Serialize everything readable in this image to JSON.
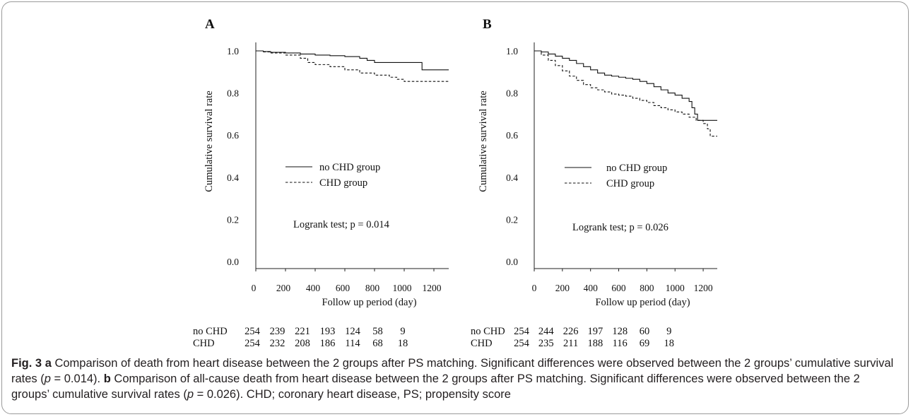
{
  "chart_data": [
    {
      "panel_label": "A",
      "type": "line",
      "step": true,
      "xlabel": "Follow up period (day)",
      "ylabel": "Cumulative survival rate",
      "xticks": [
        0,
        200,
        400,
        600,
        800,
        1000,
        1200
      ],
      "yticks": [
        0.0,
        0.2,
        0.4,
        0.6,
        0.8,
        1.0
      ],
      "xlim": [
        0,
        1300
      ],
      "ylim": [
        0.0,
        1.0
      ],
      "legend": [
        {
          "name": "no CHD group",
          "style": "solid"
        },
        {
          "name": "CHD group",
          "style": "dashed"
        }
      ],
      "annotation": "Logrank test; p = 0.014",
      "series": [
        {
          "name": "no CHD group",
          "style": "solid",
          "x": [
            0,
            50,
            100,
            200,
            300,
            400,
            500,
            600,
            700,
            750,
            800,
            900,
            1000,
            1100,
            1120,
            1300
          ],
          "y": [
            1.0,
            0.997,
            0.993,
            0.99,
            0.985,
            0.98,
            0.977,
            0.973,
            0.965,
            0.955,
            0.945,
            0.945,
            0.945,
            0.945,
            0.91,
            0.91
          ]
        },
        {
          "name": "CHD group",
          "style": "dashed",
          "x": [
            0,
            50,
            100,
            200,
            300,
            350,
            400,
            500,
            600,
            700,
            800,
            900,
            950,
            1000,
            1100,
            1200,
            1300
          ],
          "y": [
            1.0,
            0.995,
            0.99,
            0.98,
            0.965,
            0.945,
            0.935,
            0.925,
            0.91,
            0.895,
            0.885,
            0.875,
            0.865,
            0.855,
            0.855,
            0.855,
            0.855
          ]
        }
      ],
      "risk_table": {
        "rows": [
          {
            "label": "no CHD",
            "values": [
              "254",
              "239",
              "221",
              "193",
              "124",
              "58",
              "9"
            ]
          },
          {
            "label": "CHD",
            "values": [
              "254",
              "232",
              "208",
              "186",
              "114",
              "68",
              "18"
            ]
          }
        ]
      }
    },
    {
      "panel_label": "B",
      "type": "line",
      "step": true,
      "xlabel": "Follow up period (day)",
      "ylabel": "Cumulative survival rate",
      "xticks": [
        0,
        200,
        400,
        600,
        800,
        1000,
        1200
      ],
      "yticks": [
        0.0,
        0.2,
        0.4,
        0.6,
        0.8,
        1.0
      ],
      "xlim": [
        0,
        1300
      ],
      "ylim": [
        0.0,
        1.0
      ],
      "legend": [
        {
          "name": "no CHD group",
          "style": "solid"
        },
        {
          "name": "CHD group",
          "style": "dashed"
        }
      ],
      "annotation": "Logrank test; p = 0.026",
      "series": [
        {
          "name": "no CHD group",
          "style": "solid",
          "x": [
            0,
            50,
            100,
            150,
            200,
            250,
            300,
            350,
            400,
            450,
            500,
            550,
            600,
            650,
            700,
            750,
            800,
            850,
            900,
            950,
            1000,
            1050,
            1100,
            1120,
            1140,
            1160,
            1300
          ],
          "y": [
            1.0,
            0.995,
            0.985,
            0.975,
            0.965,
            0.955,
            0.94,
            0.925,
            0.91,
            0.895,
            0.885,
            0.88,
            0.875,
            0.87,
            0.865,
            0.855,
            0.845,
            0.83,
            0.815,
            0.8,
            0.79,
            0.775,
            0.76,
            0.73,
            0.7,
            0.67,
            0.67
          ]
        },
        {
          "name": "CHD group",
          "style": "dashed",
          "x": [
            0,
            50,
            100,
            150,
            200,
            250,
            300,
            350,
            400,
            450,
            500,
            550,
            600,
            650,
            700,
            750,
            800,
            850,
            900,
            950,
            1000,
            1050,
            1100,
            1150,
            1200,
            1230,
            1250,
            1300
          ],
          "y": [
            1.0,
            0.98,
            0.955,
            0.93,
            0.905,
            0.88,
            0.86,
            0.84,
            0.825,
            0.815,
            0.805,
            0.795,
            0.79,
            0.785,
            0.775,
            0.765,
            0.755,
            0.74,
            0.73,
            0.72,
            0.71,
            0.7,
            0.685,
            0.67,
            0.655,
            0.63,
            0.595,
            0.595
          ]
        }
      ],
      "risk_table": {
        "rows": [
          {
            "label": "no CHD",
            "values": [
              "254",
              "244",
              "226",
              "197",
              "128",
              "60",
              "9"
            ]
          },
          {
            "label": "CHD",
            "values": [
              "254",
              "235",
              "211",
              "188",
              "116",
              "69",
              "18"
            ]
          }
        ]
      }
    }
  ],
  "caption": {
    "fig_label": "Fig. 3",
    "part_a_letter": "a",
    "part_a_text": " Comparison of death from heart disease between the 2 groups after PS matching. Significant differences were observed between the 2 groups’ cumulative survival rates (",
    "part_a_p": "p",
    "part_a_value": " = 0.014). ",
    "part_b_letter": "b",
    "part_b_text": " Comparison of all-cause death from heart disease between the 2 groups after PS matching. Significant differences were observed between the 2 groups’ cumulative survival rates (",
    "part_b_p": "p",
    "part_b_value": " = 0.026). CHD; coronary heart disease, PS; propensity score"
  }
}
